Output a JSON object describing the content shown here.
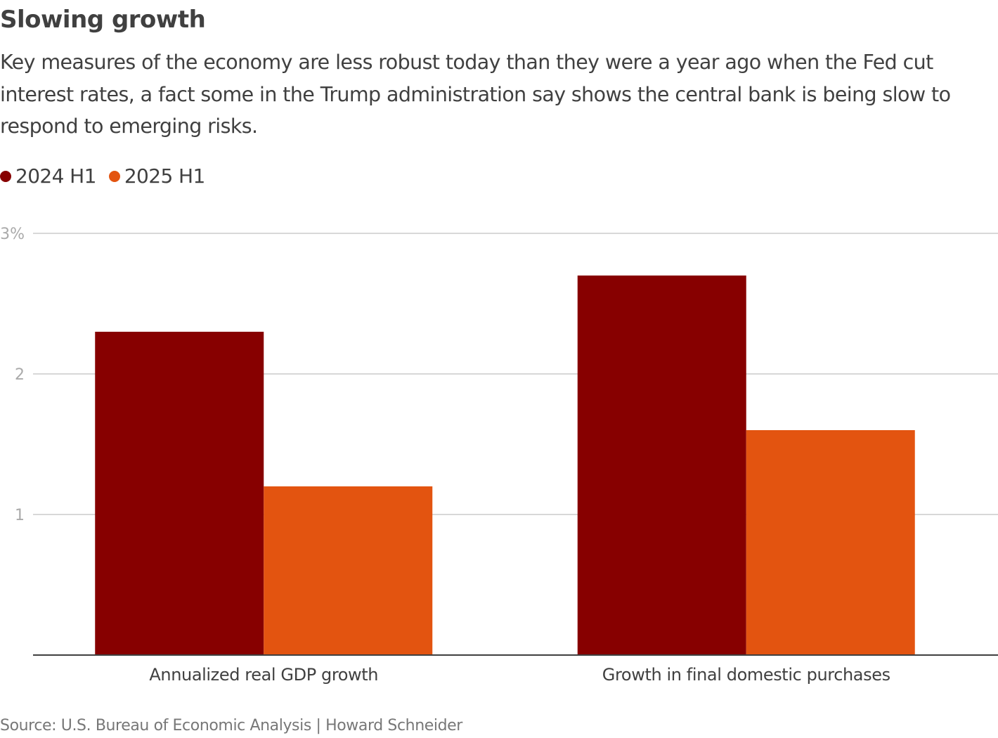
{
  "header": {
    "title": "Slowing growth",
    "subtitle": "Key measures of the economy are less robust today than they were a year ago when the Fed cut interest rates, a fact some in the Trump administration say shows the central bank is being slow to respond to emerging risks."
  },
  "legend": [
    {
      "label": "2024 H1",
      "color": "#870000"
    },
    {
      "label": "2025 H1",
      "color": "#e35410"
    }
  ],
  "footer": {
    "source": "Source: U.S. Bureau of Economic Analysis | Howard Schneider"
  },
  "chart_data": {
    "type": "bar",
    "title": "Slowing growth",
    "xlabel": "",
    "ylabel": "",
    "categories": [
      "Annualized real GDP growth",
      "Growth in final domestic purchases"
    ],
    "series": [
      {
        "name": "2024 H1",
        "color": "#870000",
        "values": [
          2.3,
          2.7
        ]
      },
      {
        "name": "2025 H1",
        "color": "#e35410",
        "values": [
          1.2,
          1.6
        ]
      }
    ],
    "ylim": [
      0,
      3
    ],
    "yticks": [
      {
        "value": 1,
        "label": "1"
      },
      {
        "value": 2,
        "label": "2"
      },
      {
        "value": 3,
        "label": "3%"
      }
    ],
    "grid": true,
    "legend_position": "top-left"
  }
}
